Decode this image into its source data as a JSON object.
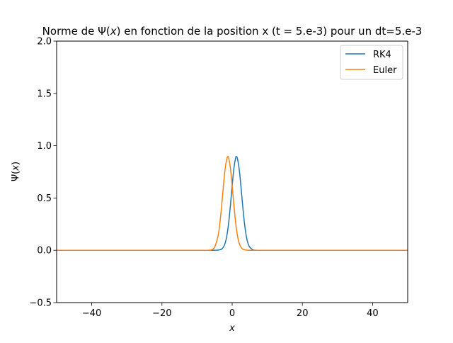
{
  "chart_data": {
    "type": "line",
    "title": {
      "prefix": "Norme de Ψ(",
      "var": "x",
      "suffix": ") en fonction de la position x (t = 5.e-3) pour un dt=5.e-3"
    },
    "xlabel": "x",
    "ylabel": {
      "prefix": "Ψ(",
      "var": "x",
      "suffix": ")"
    },
    "xlim": [
      -50,
      50
    ],
    "ylim": [
      -0.5,
      2.0
    ],
    "xticks": [
      -40,
      -20,
      0,
      20,
      40
    ],
    "xtick_labels": [
      "−40",
      "−20",
      "0",
      "20",
      "40"
    ],
    "yticks": [
      -0.5,
      0.0,
      0.5,
      1.0,
      1.5,
      2.0
    ],
    "ytick_labels": [
      "−0.5",
      "0.0",
      "0.5",
      "1.0",
      "1.5",
      "2.0"
    ],
    "grid": false,
    "legend_position": "top-right",
    "series": [
      {
        "name": "RK4",
        "color": "#1f77b4",
        "x": [
          -50,
          -10,
          -6,
          -5,
          -4,
          -3,
          -2.5,
          -2,
          -1.5,
          -1,
          -0.5,
          0,
          0.5,
          1,
          1.2,
          1.5,
          2,
          2.5,
          3,
          3.5,
          4,
          4.5,
          5,
          6,
          7,
          10,
          50
        ],
        "y": [
          0,
          0,
          0,
          0.0003,
          0.002,
          0.012,
          0.03,
          0.068,
          0.142,
          0.262,
          0.428,
          0.617,
          0.786,
          0.885,
          0.895,
          0.877,
          0.777,
          0.612,
          0.425,
          0.26,
          0.141,
          0.067,
          0.03,
          0.004,
          0.0003,
          0,
          0
        ]
      },
      {
        "name": "Euler",
        "color": "#ff7f0e",
        "x": [
          -50,
          -10,
          -7,
          -6,
          -5,
          -4,
          -3.5,
          -3,
          -2.5,
          -2,
          -1.5,
          -1.2,
          -1,
          -0.5,
          0,
          0.5,
          1,
          1.5,
          2,
          2.5,
          3,
          4,
          5,
          10,
          50
        ],
        "y": [
          0,
          0,
          0,
          0.004,
          0.03,
          0.141,
          0.26,
          0.425,
          0.612,
          0.777,
          0.877,
          0.895,
          0.885,
          0.786,
          0.617,
          0.428,
          0.262,
          0.142,
          0.068,
          0.03,
          0.012,
          0.002,
          0.0003,
          0,
          0
        ]
      }
    ]
  }
}
